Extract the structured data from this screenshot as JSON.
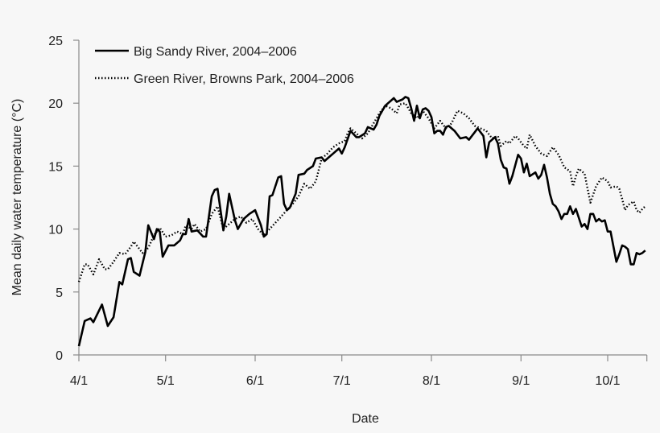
{
  "chart_data": {
    "type": "line",
    "title": "",
    "xlabel": "Date",
    "ylabel": "Mean daily water temperature (°C)",
    "ylim": [
      0,
      25
    ],
    "xlim": [
      "4/1",
      "10/14"
    ],
    "yticks": [
      "0",
      "5",
      "10",
      "15",
      "20",
      "25"
    ],
    "xticks": [
      "4/1",
      "5/1",
      "6/1",
      "7/1",
      "8/1",
      "9/1",
      "10/1"
    ],
    "grid": false,
    "legend_position": "top-left",
    "series": [
      {
        "name": "Big Sandy River, 2004–2006",
        "style": "solid",
        "color": "#000000",
        "x": [
          "4/1",
          "4/3",
          "4/5",
          "4/6",
          "4/9",
          "4/11",
          "4/13",
          "4/15",
          "4/16",
          "4/18",
          "4/19",
          "4/20",
          "4/22",
          "4/24",
          "4/25",
          "4/27",
          "4/28",
          "4/29",
          "4/30",
          "5/2",
          "5/4",
          "5/6",
          "5/7",
          "5/8",
          "5/9",
          "5/10",
          "5/12",
          "5/14",
          "5/15",
          "5/17",
          "5/18",
          "5/19",
          "5/21",
          "5/22",
          "5/23",
          "5/25",
          "5/26",
          "5/28",
          "5/30",
          "6/1",
          "6/3",
          "6/4",
          "6/5",
          "6/6",
          "6/7",
          "6/9",
          "6/10",
          "6/11",
          "6/12",
          "6/13",
          "6/15",
          "6/16",
          "6/18",
          "6/19",
          "6/21",
          "6/22",
          "6/24",
          "6/25",
          "6/27",
          "6/28",
          "6/30",
          "7/1",
          "7/2",
          "7/4",
          "7/6",
          "7/7",
          "7/9",
          "7/10",
          "7/12",
          "7/13",
          "7/14",
          "7/16",
          "7/18",
          "7/19",
          "7/20",
          "7/22",
          "7/23",
          "7/24",
          "7/25",
          "7/26",
          "7/27",
          "7/28",
          "7/29",
          "7/30",
          "7/31",
          "8/1",
          "8/2",
          "8/3",
          "8/4",
          "8/5",
          "8/6",
          "8/7",
          "8/9",
          "8/11",
          "8/13",
          "8/14",
          "8/16",
          "8/17",
          "8/19",
          "8/20",
          "8/21",
          "8/23",
          "8/24",
          "8/25",
          "8/26",
          "8/27",
          "8/28",
          "8/29",
          "8/31",
          "9/1",
          "9/2",
          "9/3",
          "9/4",
          "9/6",
          "9/7",
          "9/8",
          "9/9",
          "9/10",
          "9/11",
          "9/12",
          "9/13",
          "9/14",
          "9/15",
          "9/16",
          "9/17",
          "9/18",
          "9/19",
          "9/20",
          "9/21",
          "9/22",
          "9/23",
          "9/24",
          "9/25",
          "9/26",
          "9/27",
          "9/28",
          "9/29",
          "9/30",
          "10/1",
          "10/2",
          "10/3",
          "10/4",
          "10/5",
          "10/6",
          "10/7",
          "10/8",
          "10/9",
          "10/10",
          "10/11",
          "10/12",
          "10/13",
          "10/14"
        ],
        "y": [
          0.7,
          2.7,
          2.9,
          2.6,
          4.0,
          2.3,
          3.0,
          5.8,
          5.6,
          7.6,
          7.7,
          6.6,
          6.3,
          8.2,
          10.3,
          9.2,
          10.0,
          9.8,
          7.8,
          8.7,
          8.7,
          9.1,
          9.6,
          9.6,
          10.8,
          9.8,
          9.9,
          9.4,
          9.4,
          12.6,
          13.1,
          13.2,
          9.9,
          11.0,
          12.8,
          10.7,
          10.0,
          10.8,
          11.2,
          11.5,
          10.3,
          9.4,
          9.6,
          12.6,
          12.7,
          14.1,
          14.2,
          12.0,
          11.5,
          11.7,
          12.8,
          14.3,
          14.4,
          14.7,
          15.0,
          15.6,
          15.7,
          15.4,
          15.8,
          16.0,
          16.4,
          16.0,
          16.5,
          17.8,
          17.3,
          17.3,
          17.6,
          18.1,
          17.9,
          18.3,
          19.0,
          19.8,
          20.2,
          20.4,
          20.1,
          20.3,
          20.5,
          20.4,
          19.6,
          18.6,
          19.8,
          18.8,
          19.5,
          19.6,
          19.4,
          18.9,
          17.6,
          17.8,
          17.8,
          17.5,
          18.1,
          18.2,
          17.8,
          17.2,
          17.3,
          17.1,
          17.7,
          18.0,
          17.4,
          15.7,
          16.9,
          17.3,
          16.8,
          15.5,
          14.9,
          14.8,
          13.6,
          14.2,
          15.9,
          15.6,
          14.5,
          15.2,
          14.2,
          14.5,
          14.0,
          14.3,
          15.1,
          14.1,
          12.8,
          12.0,
          11.8,
          11.4,
          10.8,
          11.2,
          11.2,
          11.8,
          11.2,
          11.6,
          10.9,
          10.2,
          10.4,
          10.0,
          11.2,
          11.2,
          10.6,
          10.8,
          10.6,
          10.7,
          9.8,
          9.8,
          8.6,
          7.4,
          8.0,
          8.7,
          8.6,
          8.4,
          7.2,
          7.2,
          8.1,
          8.0,
          8.1,
          8.3
        ]
      },
      {
        "name": "Green River, Browns Park, 2004–2006",
        "style": "dotted",
        "color": "#000000",
        "x": [
          "4/1",
          "4/3",
          "4/4",
          "4/6",
          "4/8",
          "4/10",
          "4/11",
          "4/13",
          "4/15",
          "4/17",
          "4/19",
          "4/20",
          "4/22",
          "4/23",
          "4/25",
          "4/27",
          "4/29",
          "5/1",
          "5/3",
          "5/5",
          "5/7",
          "5/8",
          "5/10",
          "5/11",
          "5/13",
          "5/15",
          "5/17",
          "5/19",
          "5/21",
          "5/23",
          "5/25",
          "5/27",
          "5/29",
          "5/31",
          "6/2",
          "6/4",
          "6/6",
          "6/8",
          "6/10",
          "6/12",
          "6/14",
          "6/16",
          "6/18",
          "6/20",
          "6/22",
          "6/24",
          "6/26",
          "6/28",
          "6/30",
          "7/2",
          "7/3",
          "7/4",
          "7/6",
          "7/8",
          "7/10",
          "7/12",
          "7/14",
          "7/16",
          "7/18",
          "7/20",
          "7/21",
          "7/23",
          "7/25",
          "7/27",
          "7/29",
          "7/31",
          "8/2",
          "8/4",
          "8/6",
          "8/8",
          "8/10",
          "8/12",
          "8/14",
          "8/16",
          "8/18",
          "8/20",
          "8/22",
          "8/24",
          "8/25",
          "8/27",
          "8/28",
          "8/30",
          "8/31",
          "9/2",
          "9/3",
          "9/4",
          "9/6",
          "9/8",
          "9/10",
          "9/12",
          "9/14",
          "9/16",
          "9/18",
          "9/19",
          "9/20",
          "9/21",
          "9/23",
          "9/25",
          "9/27",
          "9/29",
          "10/1",
          "10/2",
          "10/4",
          "10/5",
          "10/6",
          "10/7",
          "10/8",
          "10/10",
          "10/11",
          "10/12",
          "10/13",
          "10/14"
        ],
        "y": [
          5.8,
          7.2,
          7.2,
          6.4,
          7.6,
          6.8,
          6.8,
          7.4,
          8.1,
          8.0,
          8.6,
          9.0,
          8.4,
          8.1,
          8.5,
          9.5,
          10.1,
          9.4,
          9.5,
          9.8,
          9.6,
          10.3,
          10.0,
          10.4,
          9.8,
          10.0,
          11.2,
          11.8,
          10.0,
          10.4,
          10.8,
          11.0,
          10.5,
          10.8,
          10.0,
          9.5,
          10.0,
          10.5,
          11.0,
          11.5,
          12.0,
          12.6,
          13.6,
          13.2,
          13.8,
          15.6,
          16.0,
          16.5,
          16.8,
          17.0,
          17.6,
          18.0,
          17.6,
          17.2,
          17.6,
          18.4,
          19.2,
          19.8,
          19.6,
          19.2,
          19.9,
          20.0,
          19.2,
          18.8,
          19.4,
          18.8,
          18.0,
          18.6,
          18.0,
          18.4,
          19.4,
          19.2,
          18.8,
          18.2,
          18.0,
          17.8,
          17.2,
          17.4,
          16.6,
          17.0,
          16.8,
          17.4,
          17.2,
          16.6,
          16.4,
          17.5,
          16.6,
          16.0,
          15.8,
          16.5,
          15.9,
          14.9,
          14.6,
          13.4,
          14.2,
          14.8,
          14.4,
          12.1,
          13.4,
          14.1,
          13.8,
          13.3,
          13.4,
          13.2,
          12.4,
          11.5,
          11.9,
          12.2,
          11.5,
          11.3,
          11.6,
          11.8
        ]
      }
    ]
  }
}
